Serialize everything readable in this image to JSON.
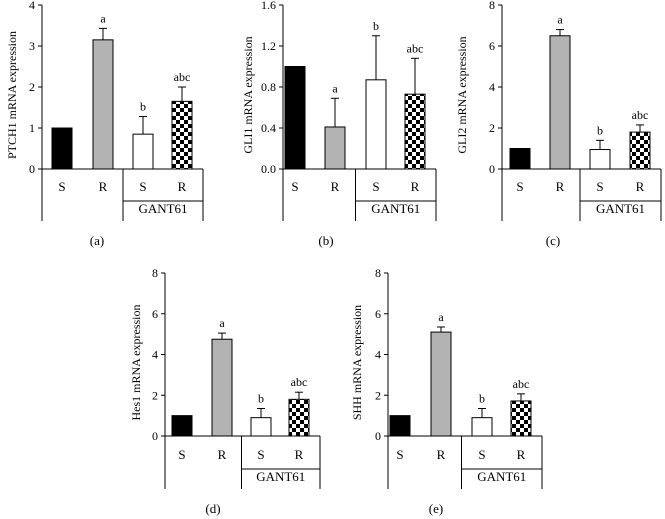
{
  "chart_data": [
    {
      "panel": "(a)",
      "type": "bar",
      "ylabel": "PTCH1 mRNA expression",
      "ylim": [
        0,
        4
      ],
      "yticks": [
        "0",
        "1",
        "2",
        "3",
        "4"
      ],
      "categories": [
        "S",
        "R",
        "S",
        "R"
      ],
      "group_label": "GANT61",
      "values": [
        1.0,
        3.15,
        0.85,
        1.65
      ],
      "errors": [
        0,
        0.28,
        0.43,
        0.35
      ],
      "annotations": [
        "",
        "a",
        "b",
        "abc"
      ],
      "fills": [
        "black",
        "gray",
        "white",
        "checker"
      ]
    },
    {
      "panel": "(b)",
      "type": "bar",
      "ylabel": "GLI1 mRNA expression",
      "ylim": [
        0,
        1.6
      ],
      "yticks": [
        "0.0",
        "0.4",
        "0.8",
        "1.2",
        "1.6"
      ],
      "categories": [
        "S",
        "R",
        "S",
        "R"
      ],
      "group_label": "GANT61",
      "values": [
        1.0,
        0.41,
        0.87,
        0.73
      ],
      "errors": [
        0,
        0.28,
        0.43,
        0.35
      ],
      "annotations": [
        "",
        "a",
        "b",
        "abc"
      ],
      "fills": [
        "black",
        "gray",
        "white",
        "checker"
      ]
    },
    {
      "panel": "(c)",
      "type": "bar",
      "ylabel": "GLI2 mRNA expression",
      "ylim": [
        0,
        8
      ],
      "yticks": [
        "0",
        "2",
        "4",
        "6",
        "8"
      ],
      "categories": [
        "S",
        "R",
        "S",
        "R"
      ],
      "group_label": "GANT61",
      "values": [
        1.0,
        6.5,
        0.95,
        1.8
      ],
      "errors": [
        0,
        0.3,
        0.45,
        0.35
      ],
      "annotations": [
        "",
        "a",
        "b",
        "abc"
      ],
      "fills": [
        "black",
        "gray",
        "white",
        "checker"
      ]
    },
    {
      "panel": "(d)",
      "type": "bar",
      "ylabel": "Hes1 mRNA expression",
      "ylim": [
        0,
        8
      ],
      "yticks": [
        "0",
        "2",
        "4",
        "6",
        "8"
      ],
      "categories": [
        "S",
        "R",
        "S",
        "R"
      ],
      "group_label": "GANT61",
      "values": [
        1.0,
        4.75,
        0.9,
        1.8
      ],
      "errors": [
        0,
        0.3,
        0.45,
        0.35
      ],
      "annotations": [
        "",
        "a",
        "b",
        "abc"
      ],
      "fills": [
        "black",
        "gray",
        "white",
        "checker"
      ]
    },
    {
      "panel": "(e)",
      "type": "bar",
      "ylabel": "SHH mRNA expression",
      "ylim": [
        0,
        8
      ],
      "yticks": [
        "0",
        "2",
        "4",
        "6",
        "8"
      ],
      "categories": [
        "S",
        "R",
        "S",
        "R"
      ],
      "group_label": "GANT61",
      "values": [
        1.0,
        5.1,
        0.9,
        1.72
      ],
      "errors": [
        0,
        0.25,
        0.45,
        0.35
      ],
      "annotations": [
        "",
        "a",
        "b",
        "abc"
      ],
      "fills": [
        "black",
        "gray",
        "white",
        "checker"
      ]
    }
  ]
}
